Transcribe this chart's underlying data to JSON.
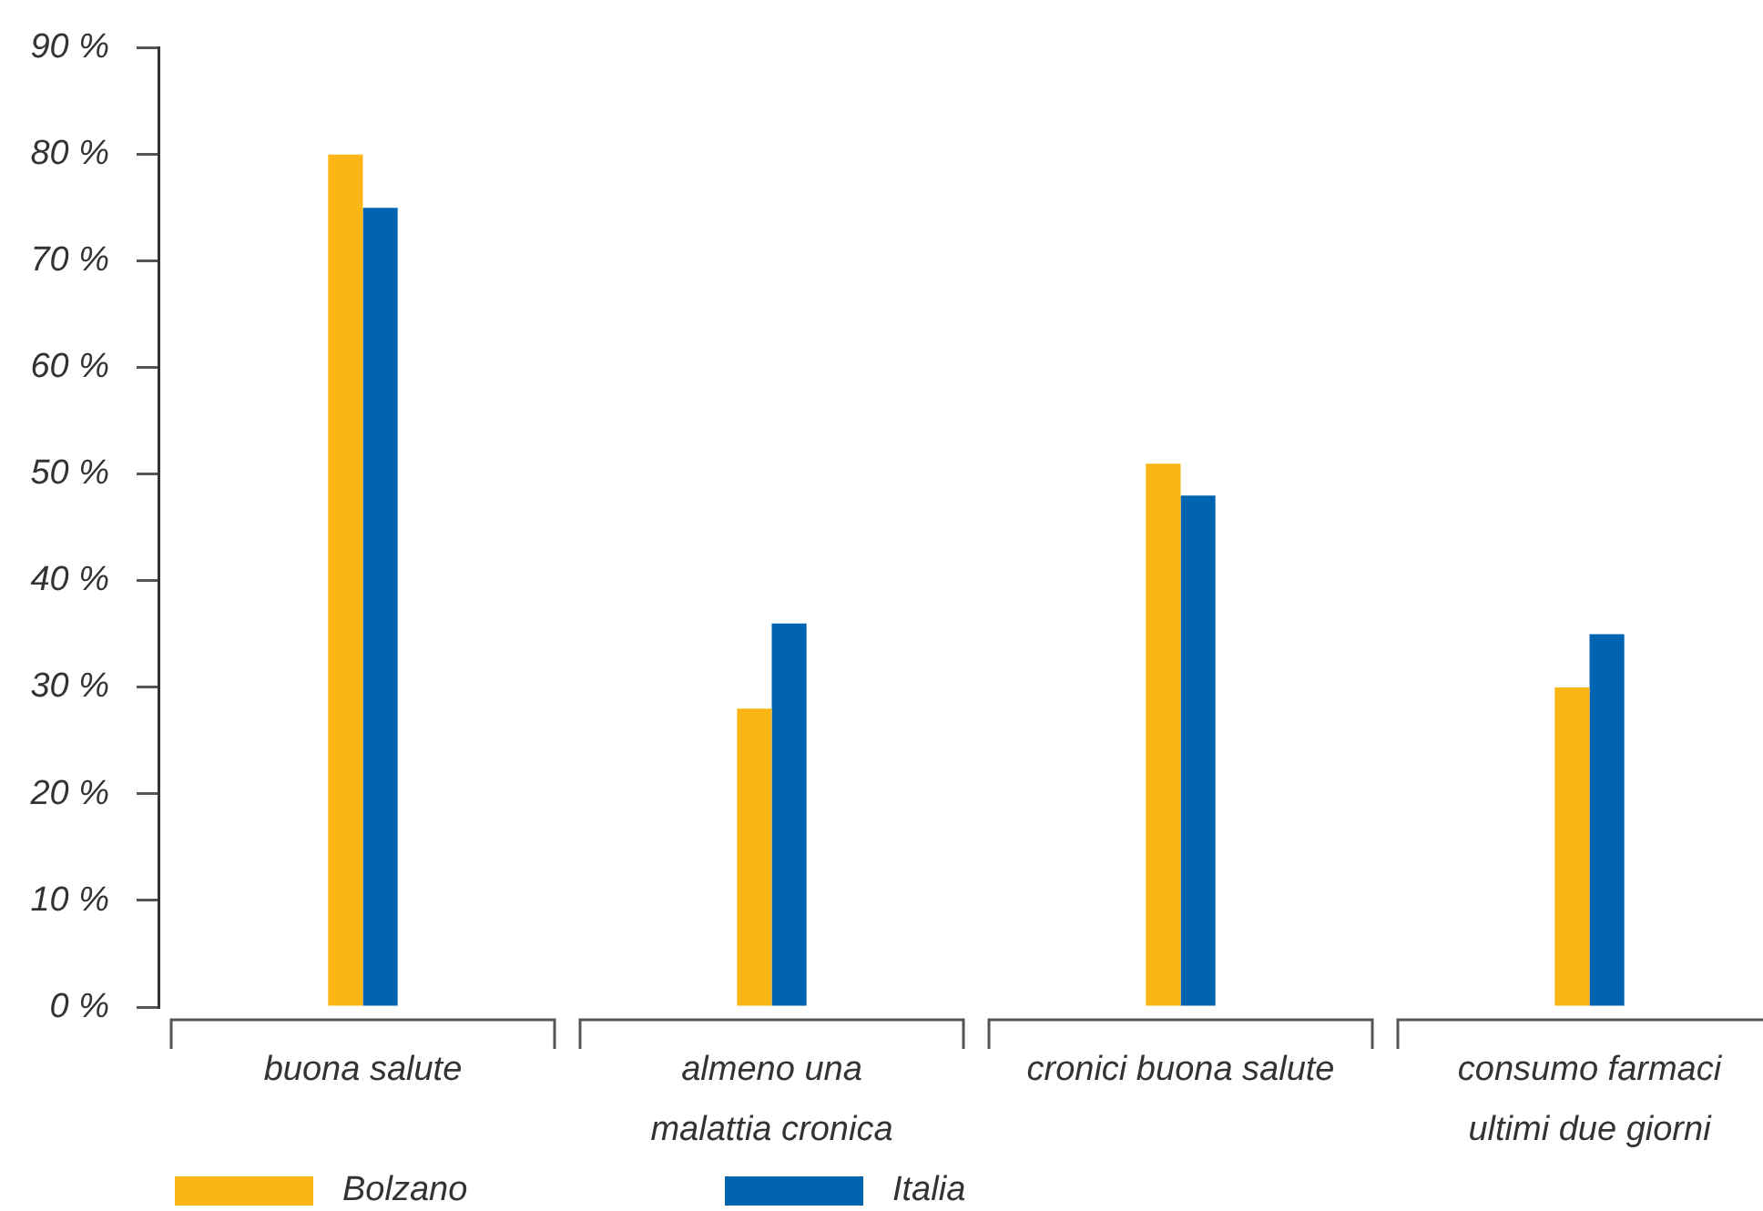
{
  "chart_data": {
    "type": "bar",
    "categories": [
      "buona salute",
      "almeno una\nmalattia cronica",
      "cronici buona salute",
      "consumo farmaci\nultimi due giorni"
    ],
    "series": [
      {
        "name": "Bolzano",
        "color": "#fbb616",
        "values": [
          80,
          28,
          51,
          30
        ]
      },
      {
        "name": "Italia",
        "color": "#0064b0",
        "values": [
          75,
          36,
          48,
          35
        ]
      }
    ],
    "ylim": [
      0,
      90
    ],
    "yticks": [
      {
        "value": 0,
        "label": "0 %"
      },
      {
        "value": 10,
        "label": "10 %"
      },
      {
        "value": 20,
        "label": "20 %"
      },
      {
        "value": 30,
        "label": "30 %"
      },
      {
        "value": 40,
        "label": "40 %"
      },
      {
        "value": 50,
        "label": "50 %"
      },
      {
        "value": 60,
        "label": "60 %"
      },
      {
        "value": 70,
        "label": "70 %"
      },
      {
        "value": 80,
        "label": "80 %"
      },
      {
        "value": 90,
        "label": "90 %"
      }
    ],
    "legend": "bottom left"
  }
}
